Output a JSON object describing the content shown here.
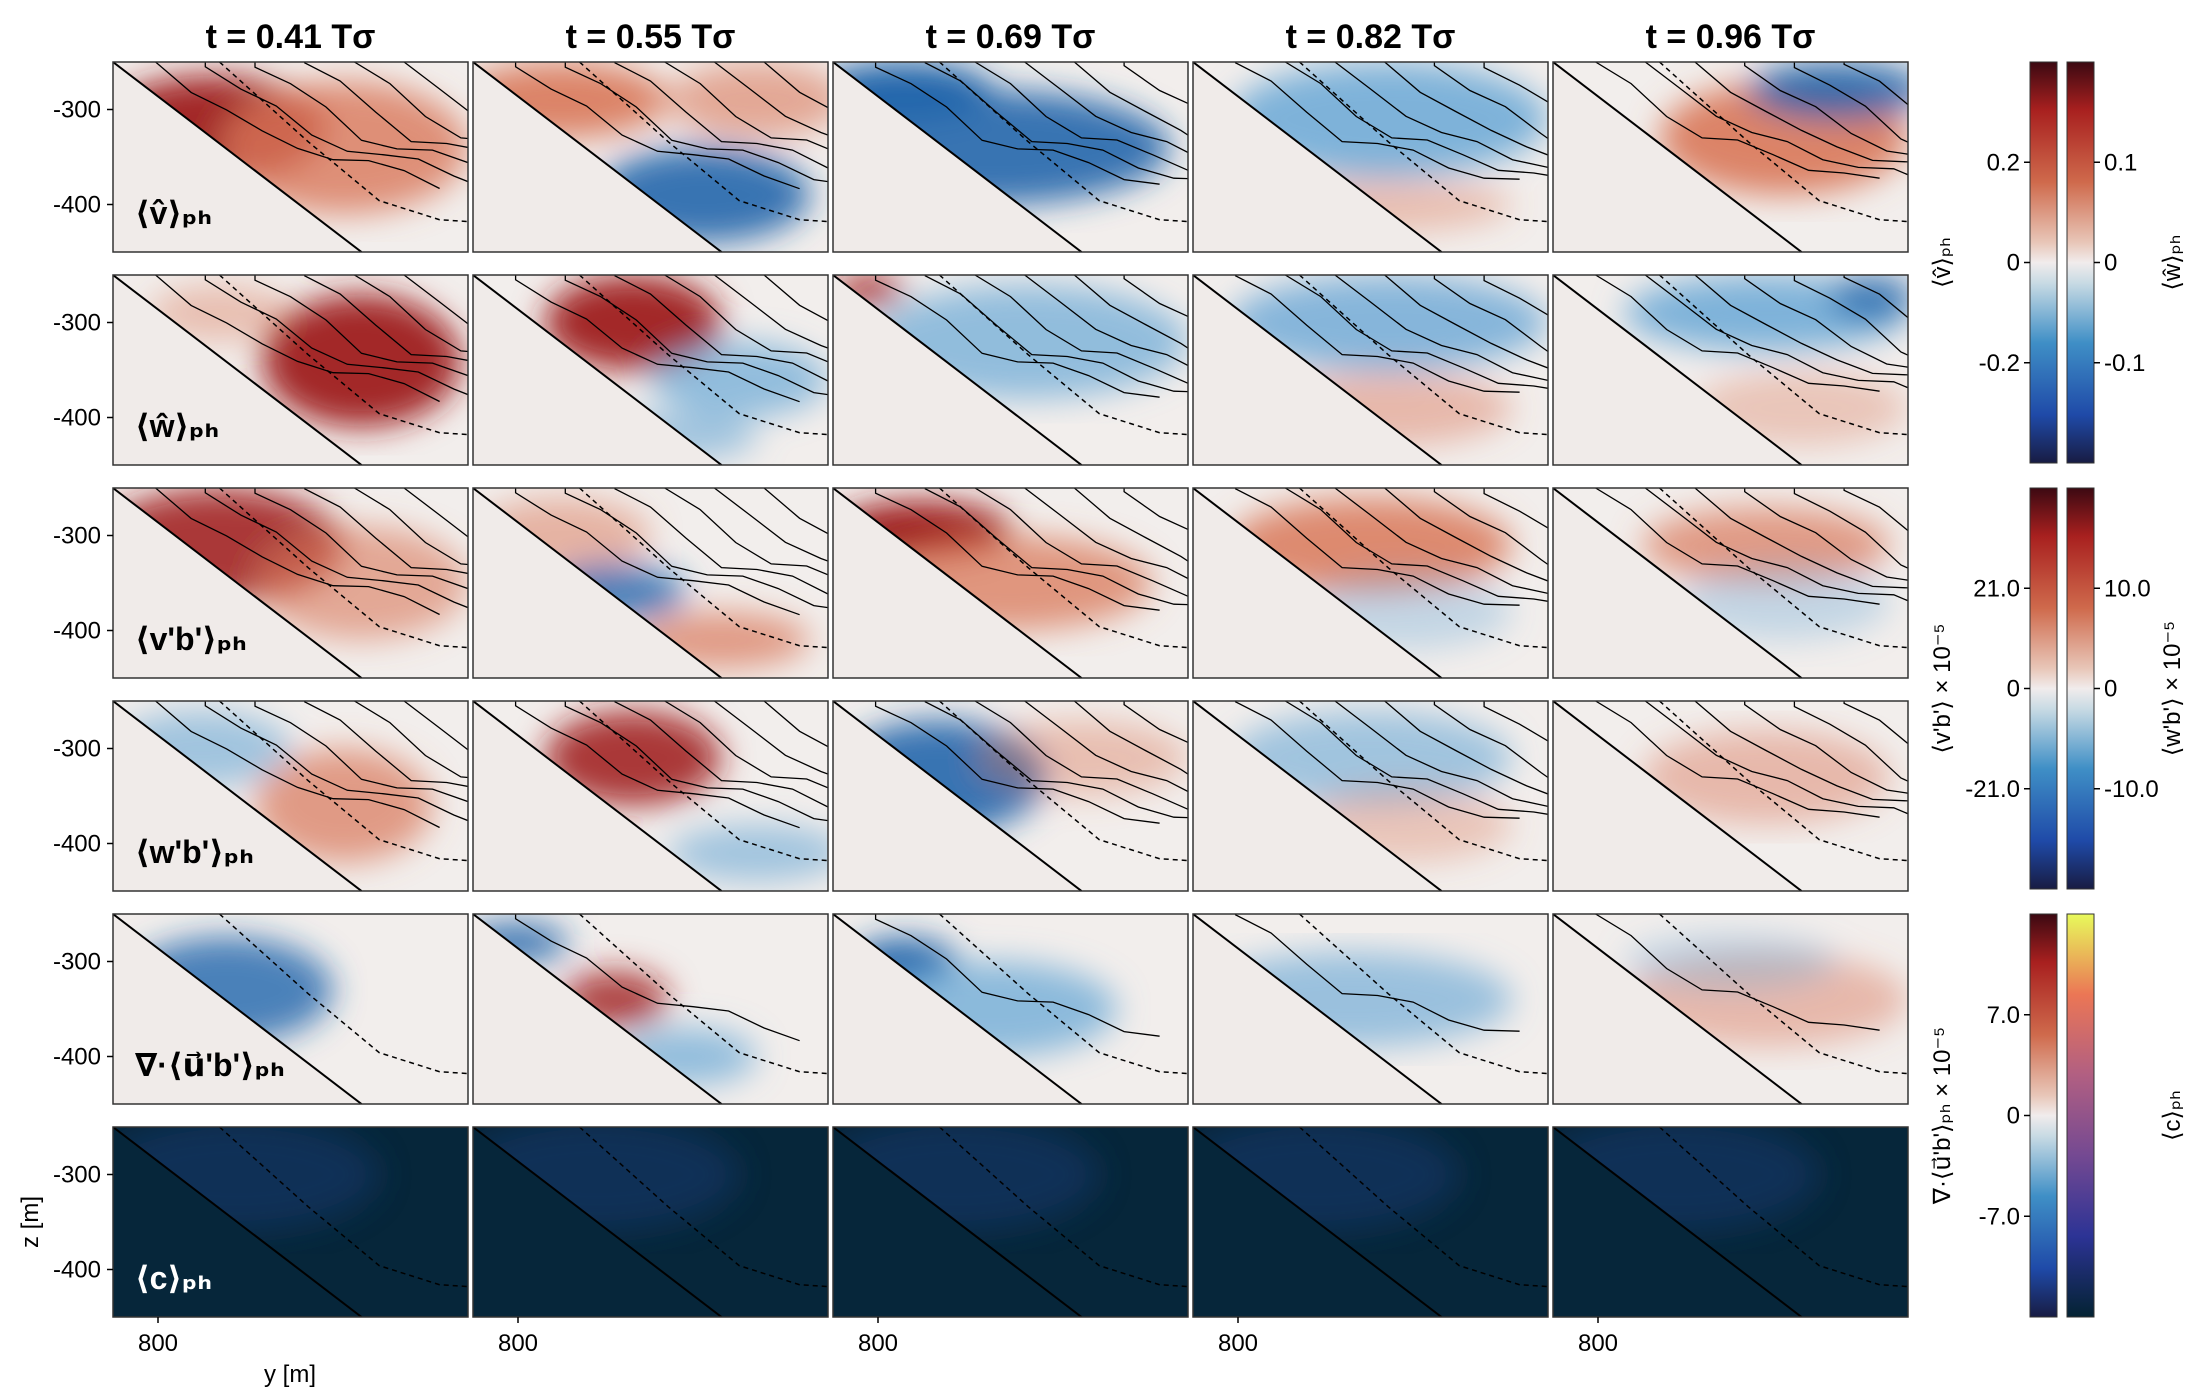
{
  "chart_data": {
    "type": "heatmap",
    "column_titles": [
      "t = 0.41 Tσ",
      "t = 0.55 Tσ",
      "t = 0.69 Tσ",
      "t = 0.82 Tσ",
      "t = 0.96 Tσ"
    ],
    "row_labels": [
      "⟨v̂⟩ₚₕ",
      "⟨ŵ⟩ₚₕ",
      "⟨v'b'⟩ₚₕ",
      "⟨w'b'⟩ₚₕ",
      "∇·⟨u⃗'b'⟩ₚₕ",
      "⟨c⟩ₚₕ"
    ],
    "ylabel": "z [m]",
    "xlabel": "y [m]",
    "x_ticks": [
      "800"
    ],
    "y_ticks": [
      "-300",
      "-400"
    ],
    "ylim": [
      -450,
      -250
    ],
    "colorbars": [
      {
        "label": "⟨v̂⟩ₚₕ",
        "ticks": [
          "0.2",
          "0",
          "-0.2"
        ],
        "colormap": "balance"
      },
      {
        "label": "⟨ŵ⟩ₚₕ",
        "ticks": [
          "0.1",
          "0",
          "-0.1"
        ],
        "colormap": "balance"
      },
      {
        "label": "⟨v'b'⟩ × 10⁻⁵",
        "ticks": [
          "21.0",
          "0",
          "-21.0"
        ],
        "colormap": "balance"
      },
      {
        "label": "⟨w'b'⟩ × 10⁻⁵",
        "ticks": [
          "10.0",
          "0",
          "-10.0"
        ],
        "colormap": "balance"
      },
      {
        "label": "∇·⟨u⃗'b'⟩ₚₕ × 10⁻⁵",
        "ticks": [
          "7.0",
          "0",
          "-7.0"
        ],
        "colormap": "balance"
      },
      {
        "label": "⟨c⟩ₚₕ",
        "ticks": [],
        "colormap": "thermal"
      }
    ]
  }
}
